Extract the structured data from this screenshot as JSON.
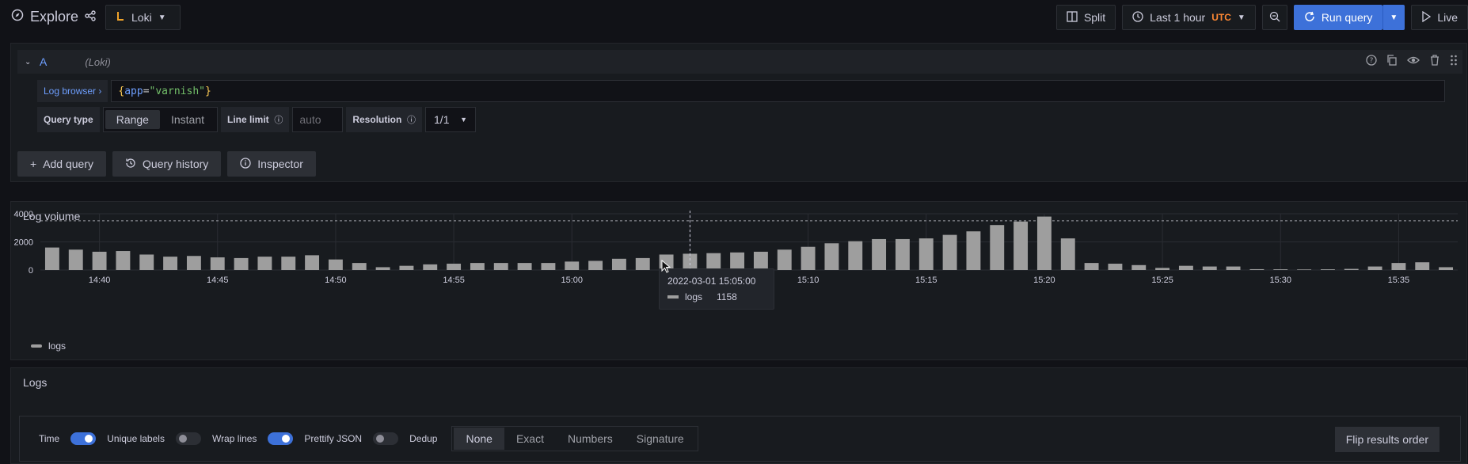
{
  "header": {
    "title": "Explore",
    "datasource": "Loki",
    "split": "Split",
    "time_range": "Last 1 hour",
    "timezone": "UTC",
    "run_query": "Run query",
    "live": "Live"
  },
  "query": {
    "ref": "A",
    "datasource_hint": "(Loki)",
    "log_browser": "Log browser",
    "expression": {
      "open": "{",
      "key": "app",
      "eq": "=",
      "value": "\"varnish\"",
      "close": "}"
    },
    "query_type_label": "Query type",
    "query_types": [
      "Range",
      "Instant"
    ],
    "active_query_type": "Range",
    "line_limit_label": "Line limit",
    "line_limit_placeholder": "auto",
    "resolution_label": "Resolution",
    "resolution_value": "1/1",
    "add_query": "Add query",
    "query_history": "Query history",
    "inspector": "Inspector"
  },
  "log_volume": {
    "title": "Log volume",
    "legend": "logs",
    "tooltip": {
      "time": "2022-03-01 15:05:00",
      "series": "logs",
      "value": "1158"
    }
  },
  "chart_data": {
    "type": "bar",
    "title": "Log volume",
    "ylim": [
      0,
      4000
    ],
    "y_ticks": [
      "4000",
      "2000",
      "0"
    ],
    "x_ticks": [
      "14:40",
      "14:45",
      "14:50",
      "14:55",
      "15:00",
      "15:05",
      "15:10",
      "15:15",
      "15:20",
      "15:25",
      "15:30",
      "15:35"
    ],
    "series": [
      {
        "name": "logs",
        "values": [
          1600,
          1450,
          1300,
          1350,
          1100,
          950,
          1000,
          900,
          850,
          950,
          950,
          1050,
          750,
          500,
          200,
          300,
          400,
          450,
          500,
          500,
          500,
          500,
          600,
          650,
          800,
          850,
          1100,
          1158,
          1200,
          1250,
          1300,
          1450,
          1650,
          1900,
          2050,
          2200,
          2200,
          2250,
          2500,
          2750,
          3200,
          3450,
          3800,
          2250,
          500,
          450,
          350,
          150,
          300,
          250,
          250,
          60,
          50,
          40,
          50,
          80,
          250,
          500,
          550,
          200
        ]
      }
    ],
    "bar_interval_minutes": 1,
    "start_time": "14:38",
    "highlight_time": "15:05",
    "threshold_line": 3500,
    "grid": true,
    "legend_position": "bottom-left"
  },
  "logs": {
    "title": "Logs",
    "time": "Time",
    "unique_labels": "Unique labels",
    "wrap_lines": "Wrap lines",
    "prettify_json": "Prettify JSON",
    "dedup": "Dedup",
    "dedup_options": [
      "None",
      "Exact",
      "Numbers",
      "Signature"
    ],
    "dedup_active": "None",
    "flip": "Flip results order",
    "switches": {
      "time": true,
      "unique_labels": false,
      "wrap_lines": true,
      "prettify_json": false
    }
  }
}
